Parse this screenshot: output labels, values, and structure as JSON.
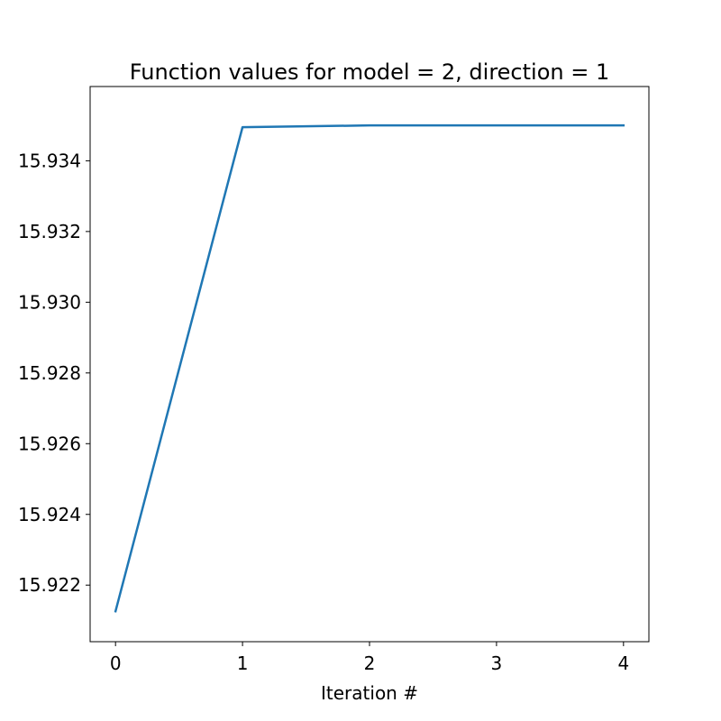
{
  "chart_data": {
    "type": "line",
    "title": "Function values for model = 2, direction = 1",
    "xlabel": "Iteration #",
    "ylabel": "",
    "x": [
      0,
      1,
      2,
      3,
      4
    ],
    "series": [
      {
        "values": [
          15.92126,
          15.93495,
          15.935,
          15.935,
          15.935
        ]
      }
    ],
    "xlim": [
      -0.2,
      4.2
    ],
    "ylim": [
      15.9361,
      15.9204
    ],
    "xticks": [
      0,
      1,
      2,
      3,
      4
    ],
    "xtick_labels": [
      "0",
      "1",
      "2",
      "3",
      "4"
    ],
    "yticks": [
      15.922,
      15.924,
      15.926,
      15.928,
      15.93,
      15.932,
      15.934
    ],
    "ytick_labels": [
      "15.922",
      "15.924",
      "15.926",
      "15.928",
      "15.930",
      "15.932",
      "15.934"
    ],
    "y_inverted": true,
    "grid": false,
    "line_color": "#1f77b4"
  }
}
